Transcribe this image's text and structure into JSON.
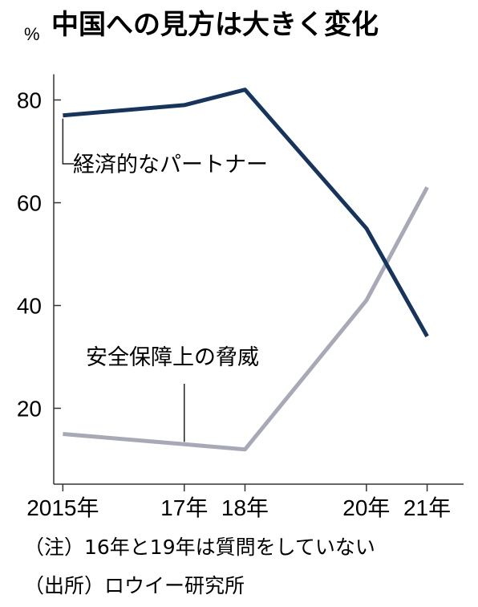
{
  "chart_data": {
    "type": "line",
    "title": "中国への見方は大きく変化",
    "ylabel": "%",
    "categories": [
      "2015年",
      "17年",
      "18年",
      "20年",
      "21年"
    ],
    "x": [
      2015,
      2017,
      2018,
      2020,
      2021
    ],
    "ylim": [
      5,
      85
    ],
    "yticks": [
      20,
      40,
      60,
      80
    ],
    "grid": false,
    "series": [
      {
        "name": "経済的なパートナー",
        "values": [
          77,
          79,
          82,
          55,
          34
        ],
        "color": "#16355e"
      },
      {
        "name": "安全保障上の脅威",
        "values": [
          15,
          13,
          12,
          41,
          63
        ],
        "color": "#a7a9b7"
      }
    ],
    "notes": [
      "（注）16年と19年は質問をしていない",
      "（出所）ロウイー研究所"
    ]
  }
}
